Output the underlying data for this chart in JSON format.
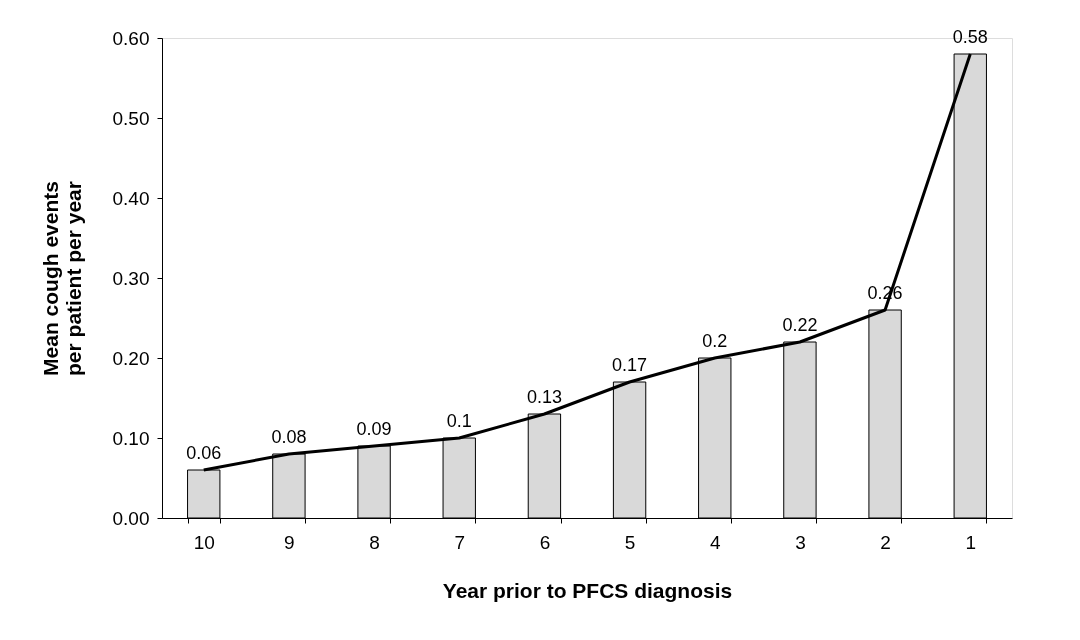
{
  "chart_data": {
    "type": "bar",
    "xlabel": "Year prior to PFCS diagnosis",
    "ylabel": "Mean cough events\nper patient per year",
    "categories": [
      "10",
      "9",
      "8",
      "7",
      "6",
      "5",
      "4",
      "3",
      "2",
      "1"
    ],
    "series": [
      {
        "color": "#d9d9d9",
        "values": [
          0.06,
          0.08,
          0.09,
          0.1,
          0.13,
          0.17,
          0.2,
          0.22,
          0.26,
          0.58
        ],
        "value_labels": [
          "0.06",
          "0.08",
          "0.09",
          "0.1",
          "0.13",
          "0.17",
          "0.2",
          "0.22",
          "0.26",
          "0.58"
        ]
      },
      {
        "type": "line",
        "color": "#000000",
        "values": [
          0.06,
          0.08,
          0.09,
          0.1,
          0.13,
          0.17,
          0.2,
          0.22,
          0.26,
          0.58
        ]
      }
    ],
    "ylim": [
      0,
      0.6
    ],
    "yticks": [
      {
        "value": 0,
        "label": "0.00"
      },
      {
        "value": 0.1,
        "label": "0.10"
      },
      {
        "value": 0.2,
        "label": "0.20"
      },
      {
        "value": 0.3,
        "label": "0.30"
      },
      {
        "value": 0.4,
        "label": "0.40"
      },
      {
        "value": 0.5,
        "label": "0.50"
      },
      {
        "value": 0.6,
        "label": "0.60"
      }
    ],
    "grid": false,
    "marker": "none",
    "line_style": "solid"
  }
}
